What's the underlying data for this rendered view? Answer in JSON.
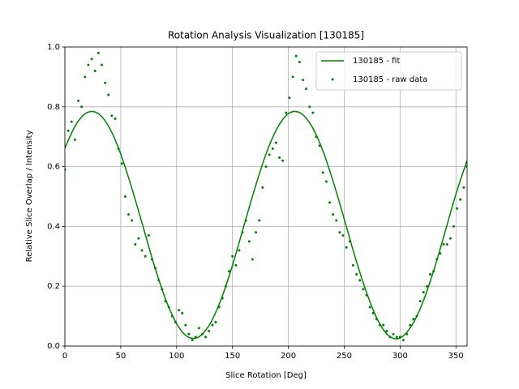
{
  "chart_data": {
    "type": "line",
    "title": "Rotation Analysis Visualization [130185]",
    "x_label": "Slice Rotation [Deg]",
    "y_label": "Relative Slice Overlap / Intensity",
    "xlim": [
      0,
      360
    ],
    "ylim": [
      0,
      1
    ],
    "xticks": [
      0,
      50,
      100,
      150,
      200,
      250,
      300,
      350
    ],
    "yticks": [
      {
        "value": 0,
        "label": "0.0"
      },
      {
        "value": 0.2,
        "label": "0.2"
      },
      {
        "value": 0.4,
        "label": "0.4"
      },
      {
        "value": 0.6,
        "label": "0.6"
      },
      {
        "value": 0.8,
        "label": "0.8"
      },
      {
        "value": 1,
        "label": "1.0"
      }
    ],
    "grid": true,
    "legend": "upper right",
    "series": [
      {
        "name": "130185 - fit",
        "type": "line",
        "color": "#008000",
        "x": [
          0,
          10,
          20,
          30,
          40,
          50,
          60,
          70,
          80,
          90,
          100,
          110,
          120,
          130,
          140,
          150,
          160,
          170,
          180,
          190,
          200,
          210,
          220,
          230,
          240,
          250,
          260,
          270,
          280,
          290,
          300,
          310,
          320,
          330,
          340,
          350,
          360
        ],
        "values": [
          0.662,
          0.741,
          0.781,
          0.777,
          0.729,
          0.642,
          0.527,
          0.399,
          0.27,
          0.158,
          0.075,
          0.031,
          0.031,
          0.075,
          0.158,
          0.27,
          0.399,
          0.527,
          0.642,
          0.728,
          0.777,
          0.781,
          0.741,
          0.662,
          0.552,
          0.425,
          0.295,
          0.179,
          0.087,
          0.034,
          0.027,
          0.066,
          0.143,
          0.251,
          0.378,
          0.508,
          0.621
        ]
      },
      {
        "name": "130185 - raw data",
        "type": "scatter",
        "color": "#008000",
        "x": [
          0,
          3,
          6,
          9,
          12,
          15,
          18,
          21,
          24,
          27,
          30,
          33,
          36,
          39,
          42,
          45,
          48,
          51,
          54,
          57,
          60,
          63,
          66,
          69,
          72,
          75,
          78,
          81,
          84,
          87,
          90,
          93,
          96,
          99,
          102,
          105,
          108,
          111,
          114,
          117,
          120,
          123,
          126,
          129,
          132,
          135,
          138,
          141,
          144,
          147,
          150,
          153,
          156,
          159,
          162,
          165,
          168,
          171,
          174,
          177,
          180,
          183,
          186,
          189,
          192,
          195,
          198,
          201,
          204,
          207,
          210,
          213,
          216,
          219,
          222,
          225,
          228,
          231,
          234,
          237,
          240,
          243,
          246,
          249,
          252,
          255,
          258,
          261,
          264,
          267,
          270,
          273,
          276,
          279,
          282,
          285,
          288,
          291,
          294,
          297,
          300,
          303,
          306,
          309,
          312,
          315,
          318,
          321,
          324,
          327,
          330,
          333,
          336,
          339,
          342,
          345,
          348,
          351,
          354,
          357,
          360
        ],
        "values": [
          0.59,
          0.72,
          0.75,
          0.69,
          0.82,
          0.8,
          0.9,
          0.94,
          0.96,
          0.92,
          0.98,
          0.94,
          0.88,
          0.84,
          0.77,
          0.76,
          0.66,
          0.61,
          0.5,
          0.44,
          0.42,
          0.34,
          0.36,
          0.32,
          0.3,
          0.37,
          0.29,
          0.26,
          0.22,
          0.19,
          0.15,
          0.13,
          0.1,
          0.08,
          0.12,
          0.11,
          0.07,
          0.04,
          0.02,
          0.03,
          0.06,
          0.04,
          0.03,
          0.05,
          0.07,
          0.08,
          0.13,
          0.16,
          0.2,
          0.25,
          0.3,
          0.27,
          0.32,
          0.38,
          0.42,
          0.35,
          0.29,
          0.38,
          0.42,
          0.53,
          0.6,
          0.64,
          0.66,
          0.68,
          0.63,
          0.62,
          0.78,
          0.83,
          0.9,
          0.97,
          0.95,
          0.89,
          0.86,
          0.8,
          0.78,
          0.7,
          0.67,
          0.58,
          0.55,
          0.48,
          0.44,
          0.42,
          0.38,
          0.37,
          0.33,
          0.35,
          0.27,
          0.24,
          0.22,
          0.19,
          0.17,
          0.13,
          0.11,
          0.09,
          0.07,
          0.07,
          0.05,
          0.03,
          0.04,
          0.03,
          0.03,
          0.02,
          0.04,
          0.07,
          0.09,
          0.1,
          0.15,
          0.18,
          0.2,
          0.24,
          0.25,
          0.29,
          0.31,
          0.34,
          0.34,
          0.36,
          0.4,
          0.46,
          0.49,
          0.53,
          0.6
        ]
      }
    ]
  }
}
